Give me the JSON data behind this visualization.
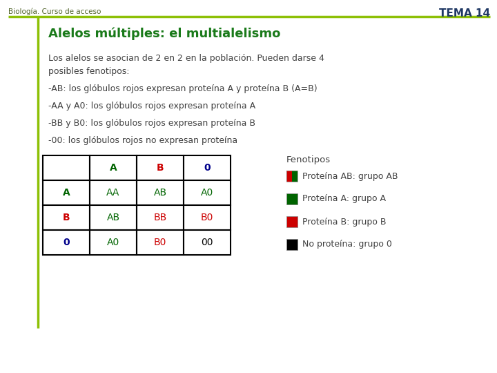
{
  "bg_color": "#ffffff",
  "header_left": "Biología. Curso de acceso",
  "header_right": "TEMA 14",
  "header_color": "#4f6228",
  "header_right_color": "#1f3864",
  "line_color": "#8dc006",
  "line_vert_color": "#8dc006",
  "title": "Alelos múltiples: el multialelismo",
  "title_color": "#1a7a1a",
  "body_text": "Los alelos se asocian de 2 en 2 en la población. Pueden darse 4\nposibles fenotipos:",
  "bullet1": "-AB: los glóbulos rojos expresan proteína A y proteína B (A=B)",
  "bullet2": "-AA y A0: los glóbulos rojos expresan proteína A",
  "bullet3": "-BB y B0: los glóbulos rojos expresan proteína B",
  "bullet4": "-00: los glóbulos rojos no expresan proteína",
  "body_color": "#404040",
  "table_data": [
    [
      "",
      "A",
      "B",
      "0"
    ],
    [
      "A",
      "AA",
      "AB",
      "A0"
    ],
    [
      "B",
      "AB",
      "BB",
      "B0"
    ],
    [
      "0",
      "A0",
      "B0",
      "00"
    ]
  ],
  "fenotipos_title": "Fenotipos",
  "fenotipos": [
    {
      "color1": "#cc0000",
      "color2": "#006400",
      "label": "Proteína AB: grupo AB"
    },
    {
      "color1": "#006400",
      "color2": "#006400",
      "label": "Proteína A: grupo A"
    },
    {
      "color1": "#cc0000",
      "color2": "#cc0000",
      "label": "Proteína B: grupo B"
    },
    {
      "color1": "#000000",
      "color2": "#000000",
      "label": "No proteína: grupo 0"
    }
  ]
}
